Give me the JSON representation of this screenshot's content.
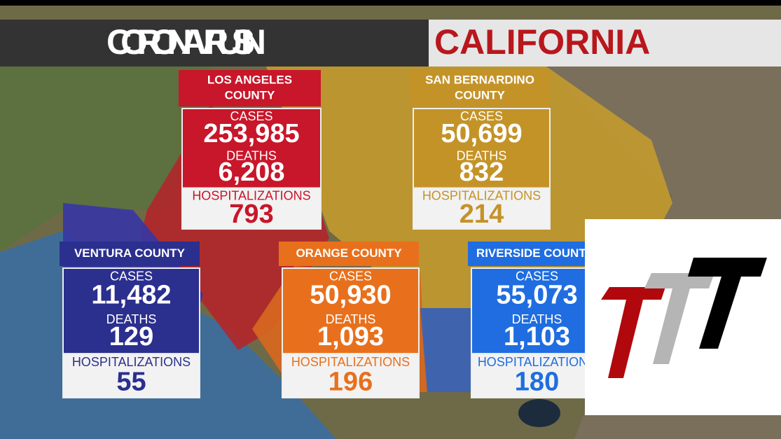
{
  "title": {
    "left": "CORONAVIRUS IN",
    "right": "CALIFORNIA"
  },
  "labels": {
    "cases": "CASES",
    "deaths": "DEATHS",
    "hospitalizations": "HOSPITALIZATIONS"
  },
  "counties": [
    {
      "name": [
        "LOS ANGELES",
        "COUNTY"
      ],
      "cases": "253,985",
      "deaths": "6,208",
      "hospitalizations": "793"
    },
    {
      "name": [
        "SAN BERNARDINO",
        "COUNTY"
      ],
      "cases": "50,699",
      "deaths": "832",
      "hospitalizations": "214"
    },
    {
      "name": [
        "VENTURA COUNTY"
      ],
      "cases": "11,482",
      "deaths": "129",
      "hospitalizations": "55"
    },
    {
      "name": [
        "ORANGE COUNTY"
      ],
      "cases": "50,930",
      "deaths": "1,093",
      "hospitalizations": "196"
    },
    {
      "name": [
        "RIVERSIDE COUNTY"
      ],
      "cases": "55,073",
      "deaths": "1,103",
      "hospitalizations": "180"
    }
  ]
}
